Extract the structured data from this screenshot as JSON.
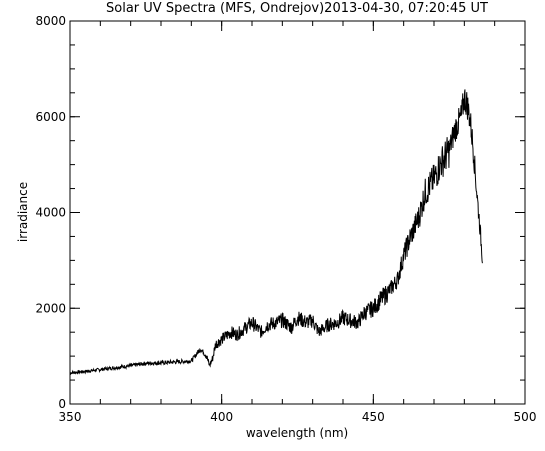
{
  "chart_data": {
    "type": "line",
    "title": "Solar UV Spectra (MFS, Ondrejov)2013-04-30, 07:20:45 UT",
    "xlabel": "wavelength (nm)",
    "ylabel": "irradiance",
    "xlim": [
      350,
      500
    ],
    "ylim": [
      0,
      8000
    ],
    "x_ticks": [
      "350",
      "400",
      "450",
      "500"
    ],
    "y_ticks": [
      "0",
      "2000",
      "4000",
      "6000",
      "8000"
    ],
    "x_minor_step": 10,
    "y_minor_step": 500,
    "grid": false,
    "line_color": "#000000",
    "series": [
      {
        "x": [
          350,
          355,
          360,
          365,
          370,
          375,
          380,
          385,
          390,
          393,
          395,
          396,
          397,
          398,
          400,
          403,
          405,
          408,
          410,
          413,
          415,
          418,
          420,
          423,
          425,
          428,
          430,
          432,
          435,
          438,
          440,
          442,
          445,
          447,
          450,
          452,
          455,
          458,
          460,
          462,
          465,
          467,
          470,
          472,
          475,
          477,
          479,
          480,
          481,
          482,
          483,
          484,
          485,
          486
        ],
        "y": [
          650,
          680,
          720,
          760,
          800,
          850,
          860,
          880,
          900,
          1150,
          1000,
          800,
          950,
          1250,
          1350,
          1500,
          1450,
          1600,
          1700,
          1500,
          1650,
          1700,
          1750,
          1600,
          1800,
          1700,
          1750,
          1500,
          1650,
          1700,
          1800,
          1750,
          1700,
          1900,
          2000,
          2150,
          2350,
          2600,
          3100,
          3450,
          3900,
          4400,
          4700,
          5000,
          5300,
          5750,
          6000,
          6400,
          6250,
          5900,
          5300,
          4500,
          3800,
          3000
        ]
      }
    ]
  }
}
